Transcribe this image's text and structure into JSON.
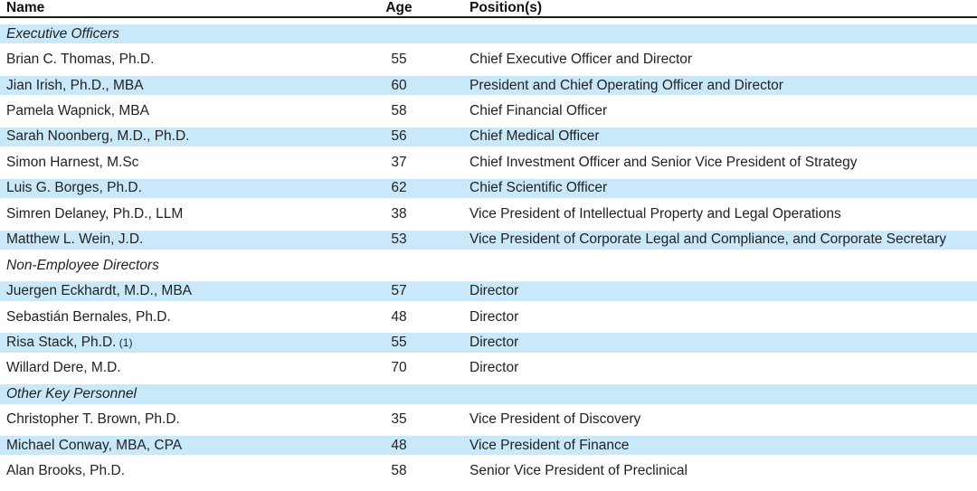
{
  "colors": {
    "row_highlight": "#c9e9fa",
    "header_rule": "#1a1a1a",
    "text": "#222222"
  },
  "table": {
    "columns": {
      "name": "Name",
      "age": "Age",
      "position": "Position(s)"
    },
    "rows": [
      {
        "type": "section",
        "label": "Executive Officers"
      },
      {
        "type": "person",
        "name": "Brian C. Thomas, Ph.D.",
        "age": "55",
        "position": "Chief Executive Officer and Director"
      },
      {
        "type": "person",
        "name": "Jian Irish, Ph.D., MBA",
        "age": "60",
        "position": "President and Chief Operating Officer and Director"
      },
      {
        "type": "person",
        "name": "Pamela Wapnick, MBA",
        "age": "58",
        "position": "Chief Financial Officer"
      },
      {
        "type": "person",
        "name": "Sarah Noonberg, M.D., Ph.D.",
        "age": "56",
        "position": "Chief Medical Officer"
      },
      {
        "type": "person",
        "name": "Simon Harnest, M.Sc",
        "age": "37",
        "position": "Chief Investment Officer and Senior Vice President of Strategy"
      },
      {
        "type": "person",
        "name": "Luis G. Borges, Ph.D.",
        "age": "62",
        "position": "Chief Scientific Officer"
      },
      {
        "type": "person",
        "name": "Simren Delaney, Ph.D., LLM",
        "age": "38",
        "position": "Vice President of Intellectual Property and Legal Operations"
      },
      {
        "type": "person",
        "name": "Matthew L. Wein, J.D.",
        "age": "53",
        "position": "Vice President of Corporate Legal and Compliance, and Corporate Secretary"
      },
      {
        "type": "section",
        "label": "Non-Employee Directors"
      },
      {
        "type": "person",
        "name": "Juergen Eckhardt, M.D., MBA",
        "age": "57",
        "position": "Director"
      },
      {
        "type": "person",
        "name": "Sebastián Bernales, Ph.D.",
        "age": "48",
        "position": "Director"
      },
      {
        "type": "person",
        "name": "Risa Stack, Ph.D.",
        "name_footnote": "(1)",
        "age": "55",
        "position": "Director"
      },
      {
        "type": "person",
        "name": "Willard Dere, M.D.",
        "age": "70",
        "position": "Director"
      },
      {
        "type": "section",
        "label": "Other Key Personnel"
      },
      {
        "type": "person",
        "name": "Christopher T. Brown, Ph.D.",
        "age": "35",
        "position": "Vice President of Discovery"
      },
      {
        "type": "person",
        "name": "Michael Conway, MBA, CPA",
        "age": "48",
        "position": "Vice President of Finance"
      },
      {
        "type": "person",
        "name": "Alan Brooks, Ph.D.",
        "age": "58",
        "position": "Senior Vice President of Preclinical"
      }
    ]
  }
}
